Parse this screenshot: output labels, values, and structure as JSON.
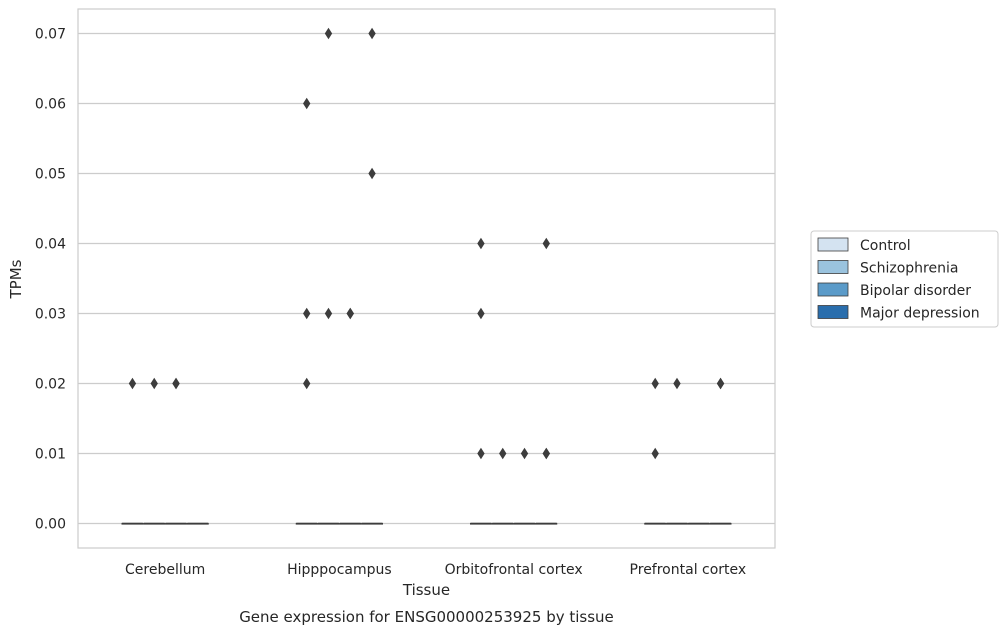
{
  "chart_data": {
    "type": "boxplot",
    "xlabel": "Tissue",
    "ylabel": "TPMs",
    "caption": "Gene expression for ENSG00000253925 by tissue",
    "categories": [
      "Cerebellum",
      "Hipppocampus",
      "Orbitofrontal cortex",
      "Prefrontal cortex"
    ],
    "ylim": [
      -0.0035,
      0.0735
    ],
    "yticks": [
      "0.00",
      "0.01",
      "0.02",
      "0.03",
      "0.04",
      "0.05",
      "0.06",
      "0.07"
    ],
    "grid": true,
    "legend_position": "right",
    "series": [
      {
        "name": "Control",
        "color": "#d4e3f1",
        "boxes": [
          {
            "category": "Cerebellum",
            "median": 0,
            "q1": 0,
            "q3": 0,
            "outliers": [
              0.02
            ]
          },
          {
            "category": "Hipppocampus",
            "median": 0,
            "q1": 0,
            "q3": 0,
            "outliers": [
              0.06,
              0.03,
              0.02
            ]
          },
          {
            "category": "Orbitofrontal cortex",
            "median": 0,
            "q1": 0,
            "q3": 0,
            "outliers": [
              0.04,
              0.03,
              0.01
            ]
          },
          {
            "category": "Prefrontal cortex",
            "median": 0,
            "q1": 0,
            "q3": 0,
            "outliers": [
              0.02,
              0.01
            ]
          }
        ]
      },
      {
        "name": "Schizophrenia",
        "color": "#9ac3de",
        "boxes": [
          {
            "category": "Cerebellum",
            "median": 0,
            "q1": 0,
            "q3": 0,
            "outliers": [
              0.02
            ]
          },
          {
            "category": "Hipppocampus",
            "median": 0,
            "q1": 0,
            "q3": 0,
            "outliers": [
              0.07,
              0.03
            ]
          },
          {
            "category": "Orbitofrontal cortex",
            "median": 0,
            "q1": 0,
            "q3": 0,
            "outliers": [
              0.01
            ]
          },
          {
            "category": "Prefrontal cortex",
            "median": 0,
            "q1": 0,
            "q3": 0,
            "outliers": [
              0.02
            ]
          }
        ]
      },
      {
        "name": "Bipolar disorder",
        "color": "#5b9bc9",
        "boxes": [
          {
            "category": "Cerebellum",
            "median": 0,
            "q1": 0,
            "q3": 0,
            "outliers": [
              0.02,
              0.02
            ]
          },
          {
            "category": "Hipppocampus",
            "median": 0,
            "q1": 0,
            "q3": 0,
            "outliers": [
              0.03,
              0.03
            ]
          },
          {
            "category": "Orbitofrontal cortex",
            "median": 0,
            "q1": 0,
            "q3": 0,
            "outliers": [
              0.01
            ]
          },
          {
            "category": "Prefrontal cortex",
            "median": 0,
            "q1": 0,
            "q3": 0,
            "outliers": []
          }
        ]
      },
      {
        "name": "Major depression",
        "color": "#2a6ead",
        "boxes": [
          {
            "category": "Cerebellum",
            "median": 0,
            "q1": 0,
            "q3": 0,
            "outliers": []
          },
          {
            "category": "Hipppocampus",
            "median": 0,
            "q1": 0,
            "q3": 0,
            "outliers": [
              0.07,
              0.05
            ]
          },
          {
            "category": "Orbitofrontal cortex",
            "median": 0,
            "q1": 0,
            "q3": 0,
            "outliers": [
              0.04,
              0.01,
              0.01
            ]
          },
          {
            "category": "Prefrontal cortex",
            "median": 0,
            "q1": 0,
            "q3": 0,
            "outliers": [
              0.02,
              0.02
            ]
          }
        ]
      }
    ]
  }
}
